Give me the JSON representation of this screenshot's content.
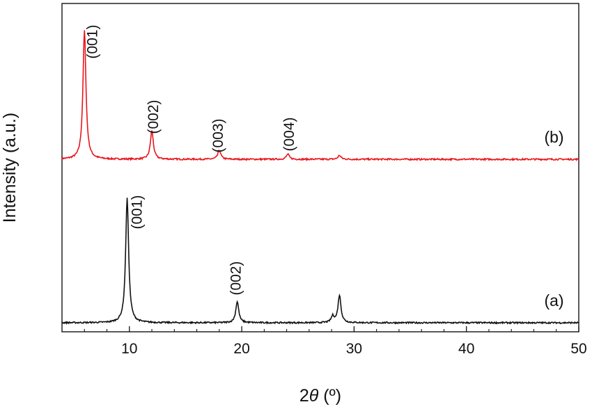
{
  "chart_data": {
    "type": "line",
    "xlabel_prefix": "2",
    "xlabel_symbol": "θ",
    "xlabel_unit": " (º)",
    "ylabel": "Intensity (a.u.)",
    "xlim": [
      4,
      50
    ],
    "x_ticks": [
      10,
      20,
      30,
      40,
      50
    ],
    "y_ticks_shown": false,
    "grid": false,
    "series": [
      {
        "name": "(b)",
        "color": "#e8141b",
        "label_x": 47.8,
        "peaks": [
          {
            "x": 6.0,
            "y": 100,
            "label": "(001)"
          },
          {
            "x": 12.0,
            "y": 22,
            "label": "(002)"
          },
          {
            "x": 18.0,
            "y": 7,
            "label": "(003)"
          },
          {
            "x": 24.1,
            "y": 4,
            "label": "(004)"
          },
          {
            "x": 28.7,
            "y": 3,
            "label": ""
          }
        ]
      },
      {
        "name": "(a)",
        "color": "#111111",
        "label_x": 47.8,
        "peaks": [
          {
            "x": 9.8,
            "y": 100,
            "label": "(001)"
          },
          {
            "x": 19.6,
            "y": 17,
            "label": "(002)"
          },
          {
            "x": 28.1,
            "y": 5,
            "label": ""
          },
          {
            "x": 28.7,
            "y": 22,
            "label": ""
          }
        ]
      }
    ]
  }
}
